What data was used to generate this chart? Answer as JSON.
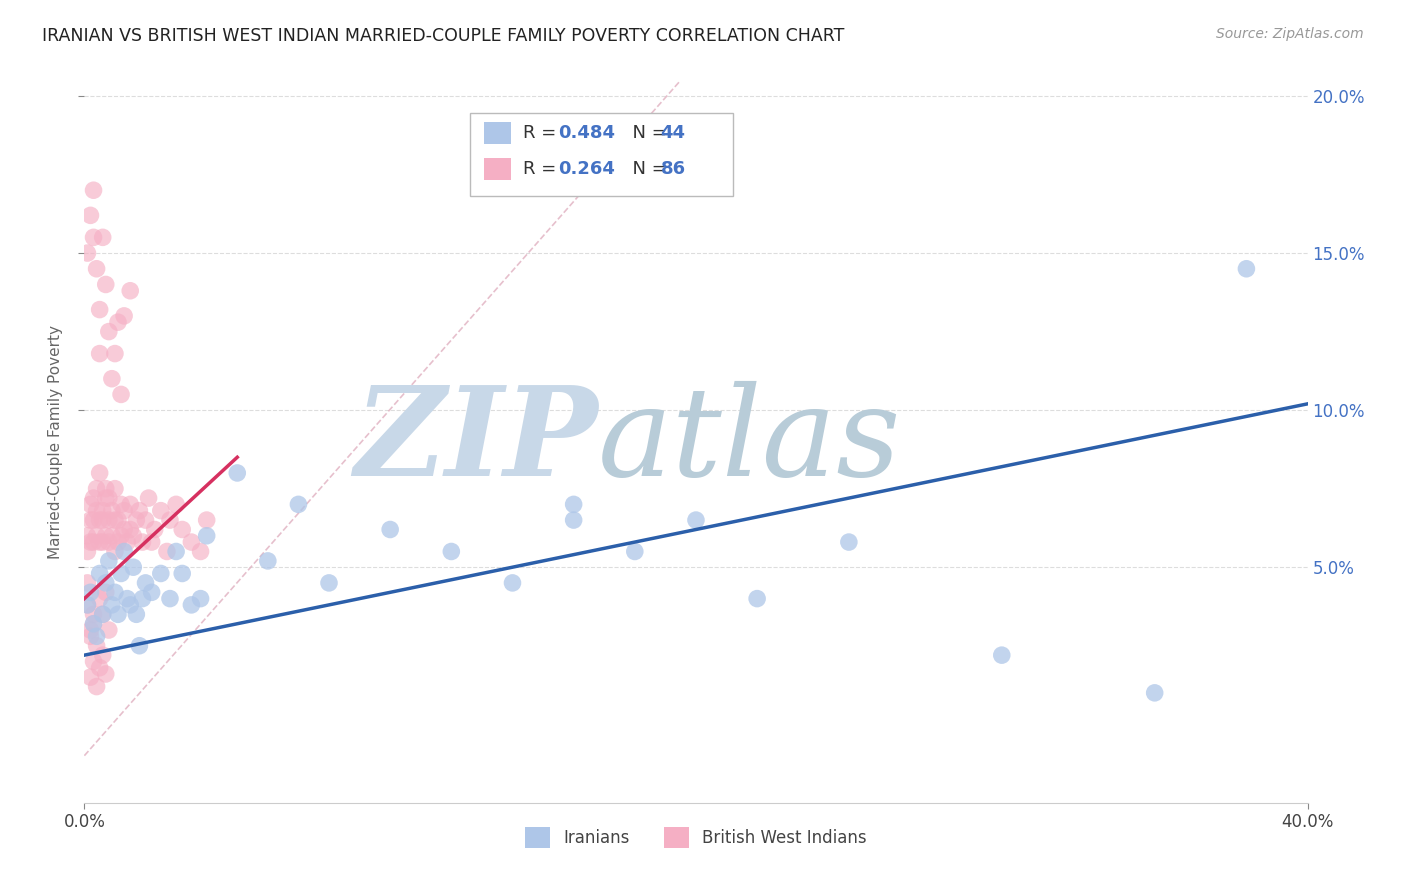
{
  "title": "IRANIAN VS BRITISH WEST INDIAN MARRIED-COUPLE FAMILY POVERTY CORRELATION CHART",
  "source": "Source: ZipAtlas.com",
  "ylabel": "Married-Couple Family Poverty",
  "xlim": [
    0.0,
    0.4
  ],
  "ylim": [
    -0.025,
    0.205
  ],
  "ytick_vals": [
    0.05,
    0.1,
    0.15,
    0.2
  ],
  "yticklabels_right": [
    "5.0%",
    "10.0%",
    "15.0%",
    "20.0%"
  ],
  "xtick_vals": [
    0.0,
    0.4
  ],
  "xticklabels": [
    "0.0%",
    "40.0%"
  ],
  "legend_r_iranian": "0.484",
  "legend_n_iranian": "44",
  "legend_r_bwi": "0.264",
  "legend_n_bwi": "86",
  "color_iranian": "#aec6e8",
  "color_bwi": "#f5afc4",
  "color_trend_iranian": "#2b5faa",
  "color_trend_bwi": "#d63060",
  "color_ref_line": "#e0b0c0",
  "watermark_zip_color": "#c8d8e8",
  "watermark_atlas_color": "#b8ccd8",
  "background_color": "#ffffff",
  "grid_color": "#dddddd",
  "iranians_x": [
    0.001,
    0.002,
    0.003,
    0.004,
    0.005,
    0.006,
    0.007,
    0.008,
    0.009,
    0.01,
    0.011,
    0.012,
    0.013,
    0.014,
    0.015,
    0.016,
    0.017,
    0.018,
    0.019,
    0.02,
    0.022,
    0.025,
    0.028,
    0.03,
    0.032,
    0.035,
    0.038,
    0.04,
    0.05,
    0.06,
    0.07,
    0.08,
    0.1,
    0.12,
    0.14,
    0.16,
    0.18,
    0.2,
    0.22,
    0.25,
    0.3,
    0.35,
    0.38,
    0.16
  ],
  "iranians_y": [
    0.038,
    0.042,
    0.032,
    0.028,
    0.048,
    0.035,
    0.045,
    0.052,
    0.038,
    0.042,
    0.035,
    0.048,
    0.055,
    0.04,
    0.038,
    0.05,
    0.035,
    0.025,
    0.04,
    0.045,
    0.042,
    0.048,
    0.04,
    0.055,
    0.048,
    0.038,
    0.04,
    0.06,
    0.08,
    0.052,
    0.07,
    0.045,
    0.062,
    0.055,
    0.045,
    0.065,
    0.055,
    0.065,
    0.04,
    0.058,
    0.022,
    0.01,
    0.145,
    0.07
  ],
  "bwi_x": [
    0.001,
    0.001,
    0.001,
    0.002,
    0.002,
    0.002,
    0.003,
    0.003,
    0.003,
    0.004,
    0.004,
    0.004,
    0.005,
    0.005,
    0.005,
    0.006,
    0.006,
    0.006,
    0.007,
    0.007,
    0.007,
    0.008,
    0.008,
    0.008,
    0.009,
    0.009,
    0.01,
    0.01,
    0.01,
    0.011,
    0.011,
    0.012,
    0.012,
    0.013,
    0.013,
    0.014,
    0.015,
    0.015,
    0.016,
    0.017,
    0.018,
    0.019,
    0.02,
    0.021,
    0.022,
    0.023,
    0.025,
    0.027,
    0.028,
    0.03,
    0.032,
    0.035,
    0.038,
    0.04,
    0.001,
    0.002,
    0.003,
    0.003,
    0.004,
    0.005,
    0.005,
    0.006,
    0.007,
    0.008,
    0.009,
    0.01,
    0.011,
    0.012,
    0.013,
    0.015,
    0.002,
    0.003,
    0.004,
    0.005,
    0.006,
    0.007,
    0.002,
    0.003,
    0.001,
    0.002,
    0.003,
    0.004,
    0.005,
    0.006,
    0.007,
    0.008
  ],
  "bwi_y": [
    0.055,
    0.06,
    0.045,
    0.065,
    0.058,
    0.07,
    0.058,
    0.065,
    0.072,
    0.06,
    0.068,
    0.075,
    0.065,
    0.058,
    0.08,
    0.068,
    0.058,
    0.065,
    0.072,
    0.06,
    0.075,
    0.065,
    0.058,
    0.072,
    0.06,
    0.068,
    0.055,
    0.065,
    0.075,
    0.058,
    0.065,
    0.06,
    0.07,
    0.062,
    0.068,
    0.058,
    0.062,
    0.07,
    0.06,
    0.065,
    0.068,
    0.058,
    0.065,
    0.072,
    0.058,
    0.062,
    0.068,
    0.055,
    0.065,
    0.07,
    0.062,
    0.058,
    0.055,
    0.065,
    0.15,
    0.162,
    0.17,
    0.155,
    0.145,
    0.132,
    0.118,
    0.155,
    0.14,
    0.125,
    0.11,
    0.118,
    0.128,
    0.105,
    0.13,
    0.138,
    0.015,
    0.02,
    0.012,
    0.018,
    0.022,
    0.016,
    0.03,
    0.035,
    0.038,
    0.028,
    0.032,
    0.025,
    0.04,
    0.035,
    0.042,
    0.03
  ],
  "iran_trend_x0": 0.0,
  "iran_trend_y0": 0.022,
  "iran_trend_x1": 0.4,
  "iran_trend_y1": 0.102,
  "bwi_trend_x0": 0.0,
  "bwi_trend_y0": 0.04,
  "bwi_trend_x1": 0.05,
  "bwi_trend_y1": 0.085,
  "ref_line_x0": 0.0,
  "ref_line_y0": -0.01,
  "ref_line_x1": 0.195,
  "ref_line_y1": 0.205
}
